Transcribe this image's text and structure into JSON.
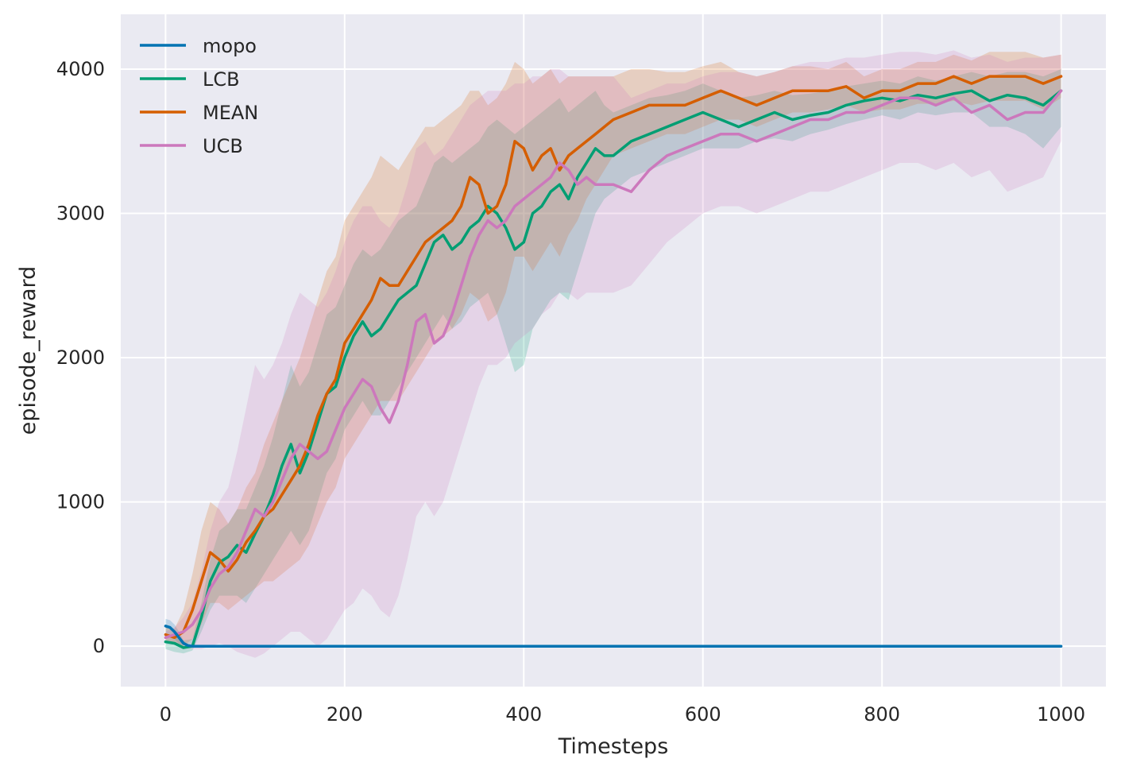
{
  "chart_data": {
    "type": "line",
    "title": "",
    "xlabel": "Timesteps",
    "ylabel": "episode_reward",
    "xlim": [
      -50,
      1050
    ],
    "ylim": [
      -280,
      4380
    ],
    "xticks": [
      0,
      200,
      400,
      600,
      800,
      1000
    ],
    "yticks": [
      0,
      1000,
      2000,
      3000,
      4000
    ],
    "grid": true,
    "legend_position": "top-left",
    "colors": {
      "background": "#eaeaf2",
      "grid": "#ffffff",
      "text": "#262626"
    },
    "series": [
      {
        "name": "mopo",
        "color": "#0173b2",
        "x": [
          0,
          5,
          10,
          15,
          20,
          25,
          30,
          60,
          100,
          200,
          300,
          400,
          500,
          600,
          700,
          800,
          900,
          1000
        ],
        "y": [
          140,
          130,
          100,
          60,
          20,
          5,
          0,
          0,
          0,
          0,
          0,
          0,
          0,
          0,
          0,
          0,
          0,
          0
        ],
        "lower": [
          90,
          80,
          50,
          20,
          5,
          0,
          0,
          0,
          0,
          0,
          0,
          0,
          0,
          0,
          0,
          0,
          0,
          0
        ],
        "upper": [
          190,
          180,
          150,
          100,
          40,
          10,
          0,
          0,
          0,
          0,
          0,
          0,
          0,
          0,
          0,
          0,
          0,
          0
        ]
      },
      {
        "name": "LCB",
        "color": "#029e73",
        "x": [
          0,
          10,
          20,
          30,
          40,
          50,
          60,
          70,
          80,
          90,
          100,
          110,
          120,
          130,
          140,
          150,
          160,
          170,
          180,
          190,
          200,
          210,
          220,
          230,
          240,
          250,
          260,
          270,
          280,
          290,
          300,
          310,
          320,
          330,
          340,
          350,
          360,
          370,
          380,
          390,
          400,
          410,
          420,
          430,
          440,
          450,
          460,
          470,
          480,
          490,
          500,
          520,
          540,
          560,
          580,
          600,
          620,
          640,
          660,
          680,
          700,
          720,
          740,
          760,
          780,
          800,
          820,
          840,
          860,
          880,
          900,
          920,
          940,
          960,
          980,
          1000
        ],
        "y": [
          30,
          20,
          -10,
          0,
          200,
          450,
          580,
          620,
          700,
          650,
          780,
          900,
          1050,
          1250,
          1400,
          1200,
          1350,
          1550,
          1750,
          1800,
          2000,
          2150,
          2250,
          2150,
          2200,
          2300,
          2400,
          2450,
          2500,
          2650,
          2800,
          2850,
          2750,
          2800,
          2900,
          2950,
          3050,
          3000,
          2900,
          2750,
          2800,
          3000,
          3050,
          3150,
          3200,
          3100,
          3250,
          3350,
          3450,
          3400,
          3400,
          3500,
          3550,
          3600,
          3650,
          3700,
          3650,
          3600,
          3650,
          3700,
          3650,
          3680,
          3700,
          3750,
          3780,
          3800,
          3780,
          3820,
          3800,
          3830,
          3850,
          3780,
          3820,
          3800,
          3750,
          3850
        ],
        "lower": [
          -20,
          -40,
          -50,
          -30,
          100,
          250,
          350,
          350,
          350,
          300,
          400,
          500,
          600,
          700,
          800,
          700,
          800,
          1000,
          1200,
          1300,
          1500,
          1600,
          1700,
          1600,
          1600,
          1700,
          1800,
          1900,
          2000,
          2100,
          2200,
          2300,
          2200,
          2250,
          2350,
          2400,
          2450,
          2300,
          2100,
          1900,
          1950,
          2200,
          2300,
          2400,
          2450,
          2400,
          2600,
          2800,
          3000,
          3100,
          3150,
          3250,
          3300,
          3350,
          3400,
          3450,
          3450,
          3450,
          3500,
          3520,
          3500,
          3550,
          3580,
          3620,
          3650,
          3680,
          3650,
          3700,
          3680,
          3700,
          3700,
          3600,
          3600,
          3550,
          3450,
          3600
        ],
        "upper": [
          80,
          80,
          40,
          50,
          300,
          600,
          800,
          850,
          950,
          950,
          1100,
          1250,
          1450,
          1700,
          1950,
          1800,
          1900,
          2100,
          2300,
          2350,
          2500,
          2650,
          2750,
          2700,
          2750,
          2850,
          2950,
          3000,
          3050,
          3200,
          3350,
          3400,
          3350,
          3400,
          3450,
          3500,
          3600,
          3650,
          3600,
          3550,
          3600,
          3650,
          3700,
          3750,
          3800,
          3700,
          3750,
          3800,
          3850,
          3750,
          3700,
          3750,
          3800,
          3820,
          3850,
          3900,
          3850,
          3800,
          3820,
          3850,
          3820,
          3830,
          3850,
          3880,
          3900,
          3920,
          3900,
          3950,
          3920,
          3950,
          3980,
          3950,
          3980,
          3980,
          3950,
          4000
        ]
      },
      {
        "name": "MEAN",
        "color": "#d55e00",
        "x": [
          0,
          10,
          20,
          30,
          40,
          50,
          60,
          70,
          80,
          90,
          100,
          110,
          120,
          130,
          140,
          150,
          160,
          170,
          180,
          190,
          200,
          210,
          220,
          230,
          240,
          250,
          260,
          270,
          280,
          290,
          300,
          310,
          320,
          330,
          340,
          350,
          360,
          370,
          380,
          390,
          400,
          410,
          420,
          430,
          440,
          450,
          460,
          470,
          480,
          490,
          500,
          520,
          540,
          560,
          580,
          600,
          620,
          640,
          660,
          680,
          700,
          720,
          740,
          760,
          780,
          800,
          820,
          840,
          860,
          880,
          900,
          920,
          940,
          960,
          980,
          1000
        ],
        "y": [
          80,
          60,
          100,
          250,
          450,
          650,
          600,
          520,
          600,
          720,
          800,
          900,
          950,
          1050,
          1150,
          1250,
          1400,
          1600,
          1750,
          1850,
          2100,
          2200,
          2300,
          2400,
          2550,
          2500,
          2500,
          2600,
          2700,
          2800,
          2850,
          2900,
          2950,
          3050,
          3250,
          3200,
          3000,
          3050,
          3200,
          3500,
          3450,
          3300,
          3400,
          3450,
          3300,
          3400,
          3450,
          3500,
          3550,
          3600,
          3650,
          3700,
          3750,
          3750,
          3750,
          3800,
          3850,
          3800,
          3750,
          3800,
          3850,
          3850,
          3850,
          3880,
          3800,
          3850,
          3850,
          3900,
          3900,
          3950,
          3900,
          3950,
          3950,
          3950,
          3900,
          3950
        ],
        "lower": [
          30,
          20,
          0,
          50,
          150,
          300,
          300,
          250,
          300,
          350,
          400,
          450,
          450,
          500,
          550,
          600,
          700,
          850,
          1000,
          1100,
          1300,
          1400,
          1500,
          1600,
          1700,
          1700,
          1700,
          1800,
          1900,
          2000,
          2100,
          2150,
          2200,
          2300,
          2450,
          2400,
          2250,
          2300,
          2450,
          2700,
          2700,
          2600,
          2700,
          2800,
          2700,
          2850,
          2950,
          3100,
          3200,
          3300,
          3400,
          3450,
          3500,
          3550,
          3550,
          3600,
          3650,
          3650,
          3600,
          3650,
          3700,
          3700,
          3720,
          3750,
          3700,
          3720,
          3720,
          3760,
          3760,
          3780,
          3750,
          3780,
          3780,
          3780,
          3720,
          3800
        ],
        "upper": [
          130,
          120,
          250,
          500,
          800,
          1000,
          950,
          850,
          950,
          1100,
          1200,
          1400,
          1550,
          1700,
          1850,
          2000,
          2200,
          2400,
          2600,
          2700,
          2950,
          3050,
          3150,
          3250,
          3400,
          3350,
          3300,
          3400,
          3500,
          3600,
          3600,
          3650,
          3700,
          3750,
          3850,
          3850,
          3750,
          3800,
          3900,
          4050,
          4000,
          3900,
          3950,
          4000,
          3900,
          3950,
          3950,
          3950,
          3950,
          3950,
          3950,
          4000,
          4000,
          3980,
          3980,
          4020,
          4050,
          3980,
          3950,
          3980,
          4020,
          4020,
          4000,
          4050,
          3950,
          4000,
          4000,
          4050,
          4050,
          4100,
          4060,
          4120,
          4120,
          4120,
          4080,
          4100
        ]
      },
      {
        "name": "UCB",
        "color": "#cc78bc",
        "x": [
          0,
          10,
          20,
          30,
          40,
          50,
          60,
          70,
          80,
          90,
          100,
          110,
          120,
          130,
          140,
          150,
          160,
          170,
          180,
          190,
          200,
          210,
          220,
          230,
          240,
          250,
          260,
          270,
          280,
          290,
          300,
          310,
          320,
          330,
          340,
          350,
          360,
          370,
          380,
          390,
          400,
          410,
          420,
          430,
          440,
          450,
          460,
          470,
          480,
          490,
          500,
          520,
          540,
          560,
          580,
          600,
          620,
          640,
          660,
          680,
          700,
          720,
          740,
          760,
          780,
          800,
          820,
          840,
          860,
          880,
          900,
          920,
          940,
          960,
          980,
          1000
        ],
        "y": [
          60,
          80,
          100,
          150,
          250,
          400,
          500,
          550,
          650,
          800,
          950,
          900,
          1000,
          1150,
          1300,
          1400,
          1350,
          1300,
          1350,
          1500,
          1650,
          1750,
          1850,
          1800,
          1650,
          1550,
          1700,
          1950,
          2250,
          2300,
          2100,
          2150,
          2300,
          2500,
          2700,
          2850,
          2950,
          2900,
          2950,
          3050,
          3100,
          3150,
          3200,
          3250,
          3350,
          3300,
          3200,
          3250,
          3200,
          3200,
          3200,
          3150,
          3300,
          3400,
          3450,
          3500,
          3550,
          3550,
          3500,
          3550,
          3600,
          3650,
          3650,
          3700,
          3700,
          3750,
          3800,
          3800,
          3750,
          3800,
          3700,
          3750,
          3650,
          3700,
          3700,
          3850
        ],
        "lower": [
          20,
          30,
          0,
          -20,
          -20,
          0,
          20,
          0,
          -40,
          -60,
          -80,
          -50,
          0,
          50,
          100,
          100,
          50,
          0,
          50,
          150,
          250,
          300,
          400,
          350,
          250,
          200,
          350,
          600,
          900,
          1000,
          900,
          1000,
          1200,
          1400,
          1600,
          1800,
          1950,
          1950,
          2000,
          2100,
          2150,
          2200,
          2300,
          2350,
          2450,
          2450,
          2400,
          2450,
          2450,
          2450,
          2450,
          2500,
          2650,
          2800,
          2900,
          3000,
          3050,
          3050,
          3000,
          3050,
          3100,
          3150,
          3150,
          3200,
          3250,
          3300,
          3350,
          3350,
          3300,
          3350,
          3250,
          3300,
          3150,
          3200,
          3250,
          3500
        ],
        "upper": [
          100,
          130,
          200,
          300,
          520,
          800,
          1000,
          1100,
          1350,
          1650,
          1950,
          1850,
          1950,
          2100,
          2300,
          2450,
          2400,
          2350,
          2450,
          2600,
          2800,
          2950,
          3050,
          3050,
          2950,
          2900,
          3000,
          3200,
          3450,
          3500,
          3400,
          3450,
          3550,
          3650,
          3750,
          3800,
          3850,
          3850,
          3850,
          3900,
          3900,
          3950,
          3950,
          4000,
          4000,
          3950,
          3950,
          3950,
          3950,
          3950,
          3950,
          3800,
          3850,
          3900,
          3900,
          3950,
          3980,
          3980,
          3950,
          3980,
          4020,
          4050,
          4050,
          4080,
          4080,
          4100,
          4120,
          4120,
          4100,
          4130,
          4080,
          4100,
          4050,
          4080,
          4080,
          4100
        ]
      }
    ]
  }
}
